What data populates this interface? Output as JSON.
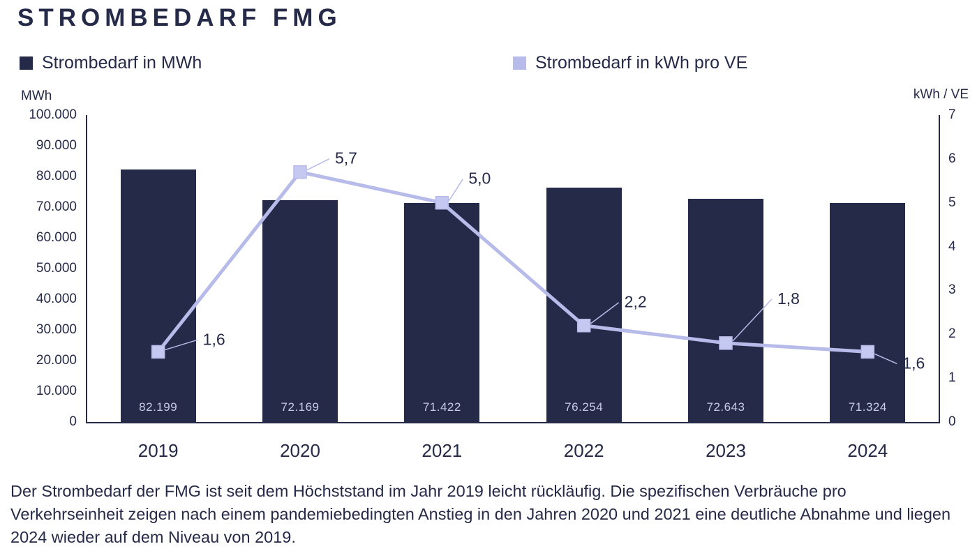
{
  "title": "STROMBEDARF FMG",
  "legend": {
    "bars_label": "Strombedarf in MWh",
    "line_label": "Strombedarf in kWh pro VE"
  },
  "axes": {
    "left_unit": "MWh",
    "right_unit": "kWh / VE"
  },
  "caption": "Der Strombedarf der FMG ist seit dem Höchststand im Jahr 2019 leicht rückläufig. Die spezifischen Verbräuche pro Verkehrseinheit zeigen nach einem pandemiebedingten Anstieg in den Jahren 2020 und 2021 eine deutliche Abnahme und liegen 2024 wieder auf dem Niveau von 2019.",
  "colors": {
    "bar": "#252a48",
    "line": "#b7bbe9",
    "line_marker": "#c5c8f0",
    "bar_value_text": "#c9cbe6",
    "text": "#252a48"
  },
  "chart_data": {
    "type": "bar+line",
    "title": "STROMBEDARF FMG",
    "categories": [
      "2019",
      "2020",
      "2021",
      "2022",
      "2023",
      "2024"
    ],
    "series": [
      {
        "name": "Strombedarf in MWh",
        "type": "bar",
        "axis": "left",
        "values": [
          82199,
          72169,
          71422,
          76254,
          72643,
          71324
        ],
        "labels": [
          "82.199",
          "72.169",
          "71.422",
          "76.254",
          "72.643",
          "71.324"
        ]
      },
      {
        "name": "Strombedarf in kWh pro VE",
        "type": "line",
        "axis": "right",
        "values": [
          1.6,
          5.7,
          5.0,
          2.2,
          1.8,
          1.6
        ],
        "labels": [
          "1,6",
          "5,7",
          "5,0",
          "2,2",
          "1,8",
          "1,6"
        ]
      }
    ],
    "left_axis": {
      "min": 0,
      "max": 100000,
      "step": 10000,
      "tick_labels": [
        "0",
        "10.000",
        "20.000",
        "30.000",
        "40.000",
        "50.000",
        "60.000",
        "70.000",
        "80.000",
        "90.000",
        "100.000"
      ]
    },
    "right_axis": {
      "min": 0,
      "max": 7,
      "step": 1,
      "tick_labels": [
        "0",
        "1",
        "2",
        "3",
        "4",
        "5",
        "6",
        "7"
      ]
    },
    "grid": false,
    "legend_position": "top"
  }
}
